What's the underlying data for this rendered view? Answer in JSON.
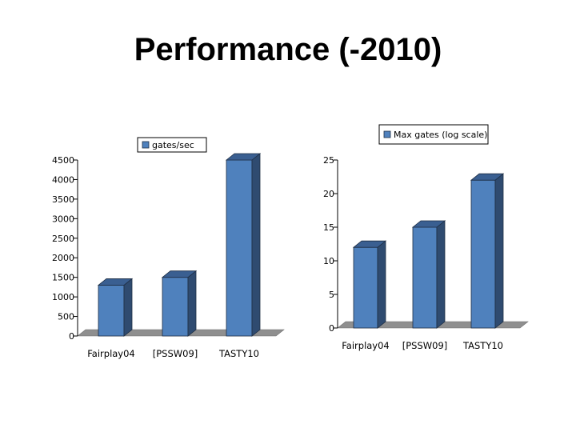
{
  "slide": {
    "title": "Performance (-2010)"
  },
  "colors": {
    "bar_front": "#4f81bd",
    "bar_side": "#2f4b70",
    "bar_top": "#3a5f91",
    "floor": "#8f8f8f",
    "border": "#1f2f45"
  },
  "chart_data": [
    {
      "type": "bar",
      "legend": "gates/sec",
      "legend_position": "top",
      "categories": [
        "Fairplay04",
        "[PSSW09]",
        "TASTY10"
      ],
      "series": [
        {
          "name": "gates/sec",
          "values": [
            1300,
            1500,
            4500
          ]
        }
      ],
      "ylim": [
        0,
        4500
      ],
      "yticks": [
        0,
        500,
        1000,
        1500,
        2000,
        2500,
        3000,
        3500,
        4000,
        4500
      ],
      "grid": false
    },
    {
      "type": "bar",
      "legend": "Max gates (log scale)",
      "legend_position": "top-right",
      "categories": [
        "Fairplay04",
        "[PSSW09]",
        "TASTY10"
      ],
      "series": [
        {
          "name": "Max gates (log scale)",
          "values": [
            12,
            15,
            22
          ]
        }
      ],
      "ylim": [
        0,
        25
      ],
      "yticks": [
        0,
        5,
        10,
        15,
        20,
        25
      ],
      "grid": false
    }
  ]
}
